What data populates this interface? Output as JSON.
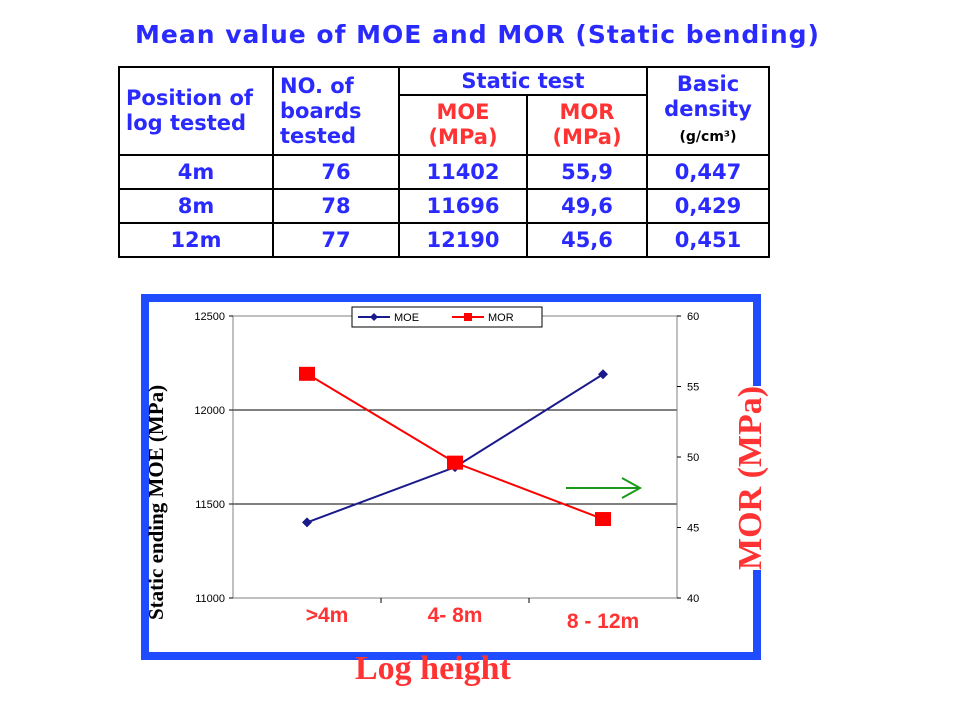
{
  "title": "Mean value of MOE and MOR  (Static bending)",
  "table": {
    "h_position": [
      "Position of",
      "log tested"
    ],
    "h_boards": [
      "NO. of",
      "boards",
      "tested"
    ],
    "h_static": "Static test",
    "h_moe": [
      "MOE",
      "(MPa)"
    ],
    "h_mor": [
      "MOR",
      "(MPa)"
    ],
    "h_density": [
      "Basic",
      "density"
    ],
    "h_density_unit": "(g/cm³)",
    "rows": [
      {
        "position": "4m",
        "boards": "76",
        "moe": "11402",
        "mor": "55,9",
        "density": "0,447"
      },
      {
        "position": "8m",
        "boards": "78",
        "moe": "11696",
        "mor": "49,6",
        "density": "0,429"
      },
      {
        "position": "12m",
        "boards": "77",
        "moe": "12190",
        "mor": "45,6",
        "density": "0,451"
      }
    ]
  },
  "chart_data": {
    "type": "line",
    "categories": [
      ">4m",
      "4- 8m",
      "8 - 12m"
    ],
    "series": [
      {
        "name": "MOE",
        "axis": "left",
        "color": "#1a1a8c",
        "values": [
          11402,
          11696,
          12190
        ]
      },
      {
        "name": "MOR",
        "axis": "right",
        "color": "#ff0000",
        "values": [
          55.9,
          49.6,
          45.6
        ]
      }
    ],
    "ylim_left": [
      11000,
      12500
    ],
    "yticks_left": [
      "11000",
      "11500",
      "12000",
      "12500"
    ],
    "ylim_right": [
      40,
      60
    ],
    "yticks_right": [
      "40",
      "45",
      "50",
      "55",
      "60"
    ],
    "ylabel_left": "Static ending MOE (MPa)",
    "ylabel_right": "MOR (MPa)",
    "xlabel": "Log height",
    "grid": true,
    "legend": "top-center",
    "arrow_color": "#1a9a1a"
  }
}
